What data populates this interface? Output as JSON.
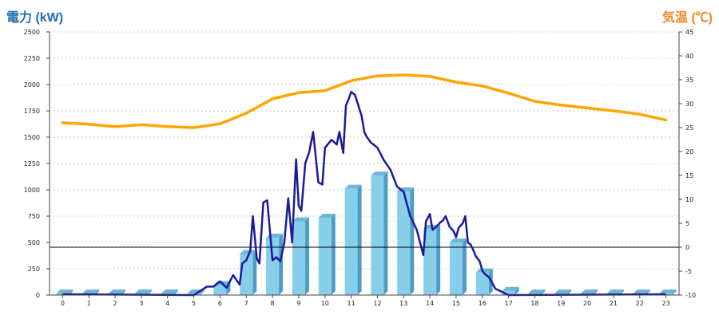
{
  "colors": {
    "power_title": "#1f6fb0",
    "temp_title": "#f08a24",
    "bar_front": "#87ceeb",
    "bar_top": "#6fb6d6",
    "bar_side": "#4f9cc3",
    "power_line": "#1a1a9a",
    "temp_line": "#ffa500",
    "grid": "#c8c8c8"
  },
  "chart_data": {
    "type": "bar+line",
    "y_left_label": "電力 (kW)",
    "y_right_label": "気温 (℃)",
    "y_left_range": [
      0,
      2500
    ],
    "y_right_range": [
      -10,
      45
    ],
    "y_left_ticks": [
      "0",
      "250",
      "500",
      "750",
      "1000",
      "1250",
      "1500",
      "1750",
      "2000",
      "2250",
      "2500"
    ],
    "y_right_ticks": [
      "-10",
      "-5",
      "0",
      "5",
      "10",
      "15",
      "20",
      "25",
      "30",
      "35",
      "40",
      "45"
    ],
    "categories": [
      "0",
      "1",
      "2",
      "3",
      "4",
      "5",
      "6",
      "7",
      "8",
      "9",
      "10",
      "11",
      "12",
      "13",
      "14",
      "15",
      "16",
      "17",
      "18",
      "19",
      "20",
      "21",
      "22",
      "23"
    ],
    "bars": {
      "name": "電力 (kW)",
      "values": [
        0,
        0,
        0,
        0,
        0,
        0,
        95,
        390,
        545,
        700,
        735,
        1010,
        1135,
        985,
        630,
        500,
        215,
        40,
        0,
        0,
        0,
        0,
        0,
        0
      ]
    },
    "power_line": {
      "x": [
        5.0,
        5.25,
        5.5,
        5.75,
        6.0,
        6.25,
        6.5,
        6.75,
        6.85,
        7.0,
        7.15,
        7.25,
        7.4,
        7.5,
        7.65,
        7.8,
        8.0,
        8.15,
        8.3,
        8.45,
        8.6,
        8.75,
        8.9,
        9.0,
        9.1,
        9.25,
        9.4,
        9.55,
        9.75,
        9.9,
        10.0,
        10.25,
        10.45,
        10.55,
        10.7,
        10.8,
        10.9,
        11.0,
        11.15,
        11.25,
        11.4,
        11.5,
        11.6,
        11.75,
        12.0,
        12.25,
        12.5,
        12.75,
        13.0,
        13.25,
        13.5,
        13.75,
        13.85,
        14.0,
        14.1,
        14.25,
        14.4,
        14.5,
        14.6,
        14.75,
        14.9,
        15.0,
        15.1,
        15.25,
        15.35,
        15.45,
        15.55,
        15.65,
        15.75,
        15.9,
        16.0,
        16.1,
        16.25,
        16.5,
        16.75,
        17.0
      ],
      "values": [
        0,
        40,
        80,
        80,
        130,
        70,
        190,
        100,
        300,
        330,
        420,
        750,
        350,
        300,
        880,
        900,
        330,
        360,
        320,
        500,
        920,
        500,
        1290,
        850,
        800,
        1250,
        1360,
        1550,
        1070,
        1050,
        1400,
        1475,
        1430,
        1550,
        1350,
        1800,
        1860,
        1930,
        1900,
        1820,
        1700,
        1550,
        1500,
        1450,
        1400,
        1280,
        1190,
        1030,
        980,
        750,
        620,
        380,
        700,
        770,
        620,
        650,
        690,
        710,
        750,
        650,
        610,
        550,
        640,
        680,
        750,
        500,
        480,
        430,
        370,
        320,
        230,
        200,
        170,
        60,
        30,
        0
      ]
    },
    "temperature_line": {
      "name": "気温 (℃)",
      "x": [
        0,
        1,
        2,
        3,
        4,
        5,
        6,
        7,
        8,
        9,
        10,
        11,
        12,
        13,
        14,
        15,
        16,
        17,
        18,
        19,
        20,
        21,
        22,
        23
      ],
      "values": [
        26,
        25.7,
        25.2,
        25.6,
        25.2,
        25,
        25.8,
        28,
        31,
        32.3,
        32.7,
        34.8,
        35.8,
        36,
        35.7,
        34.5,
        33.7,
        32.2,
        30.5,
        29.7,
        29.1,
        28.5,
        27.8,
        26.6
      ]
    },
    "grid": true
  }
}
